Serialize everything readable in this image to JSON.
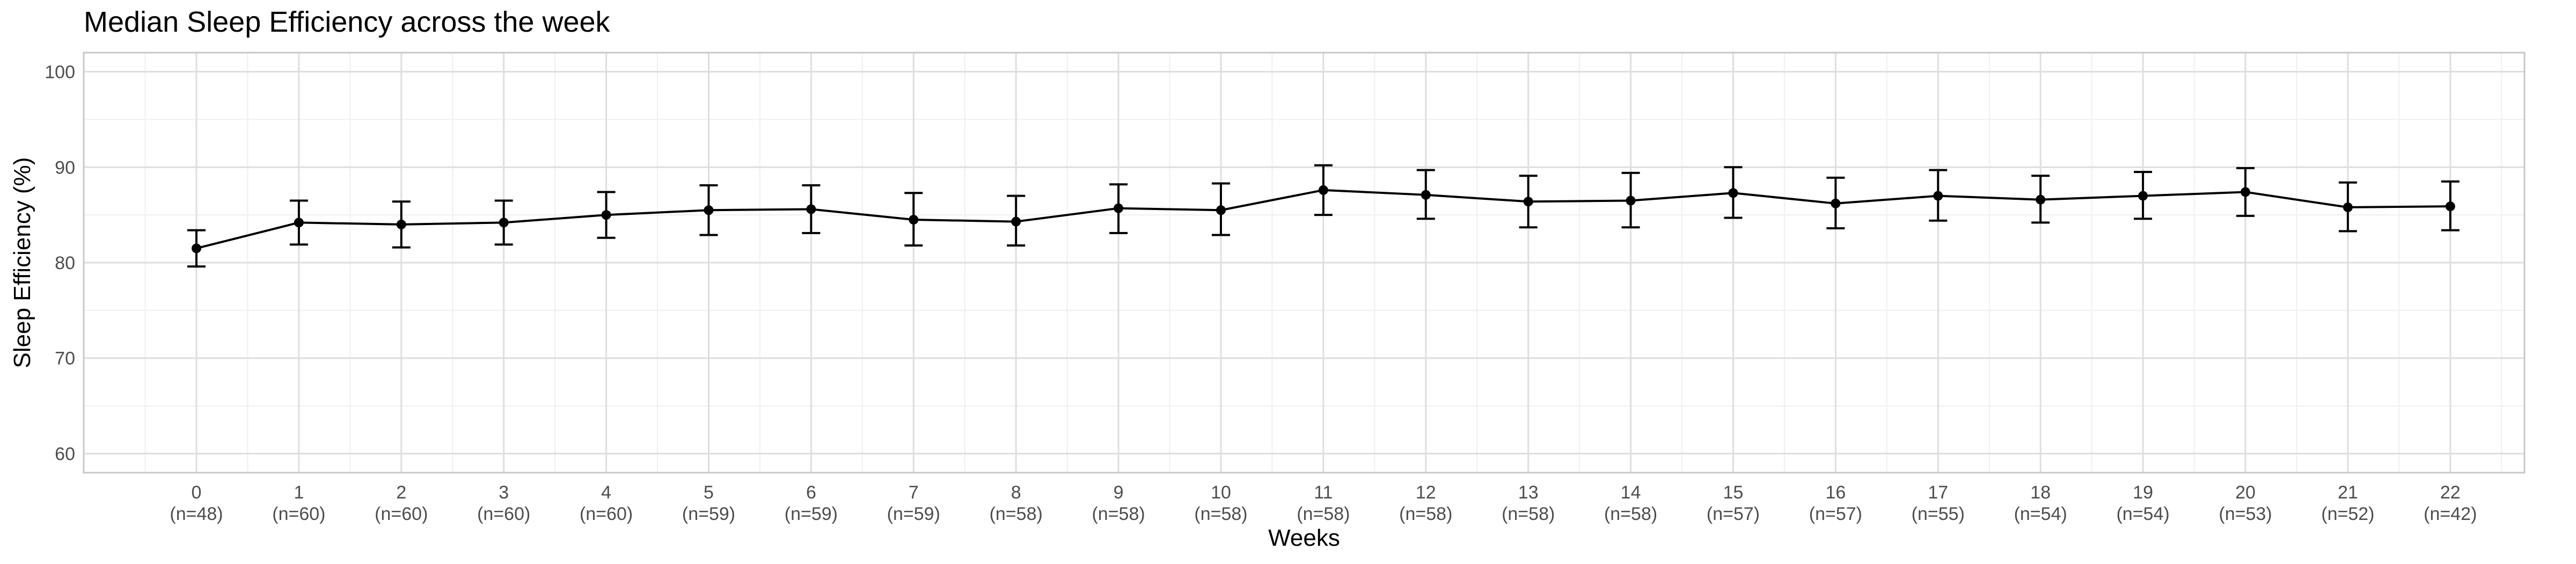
{
  "chart_data": {
    "type": "line",
    "title": "Median Sleep Efficiency across the week",
    "xlabel": "Weeks",
    "ylabel": "Sleep Efficiency (%)",
    "ylim": [
      58,
      102
    ],
    "yticks": [
      60,
      70,
      80,
      90,
      100
    ],
    "grid": true,
    "categories": [
      "0",
      "1",
      "2",
      "3",
      "4",
      "5",
      "6",
      "7",
      "8",
      "9",
      "10",
      "11",
      "12",
      "13",
      "14",
      "15",
      "16",
      "17",
      "18",
      "19",
      "20",
      "21",
      "22"
    ],
    "n_labels": [
      "(n=48)",
      "(n=60)",
      "(n=60)",
      "(n=60)",
      "(n=60)",
      "(n=59)",
      "(n=59)",
      "(n=59)",
      "(n=58)",
      "(n=58)",
      "(n=58)",
      "(n=58)",
      "(n=58)",
      "(n=58)",
      "(n=58)",
      "(n=57)",
      "(n=57)",
      "(n=55)",
      "(n=54)",
      "(n=54)",
      "(n=53)",
      "(n=52)",
      "(n=42)"
    ],
    "series": [
      {
        "values": [
          81.5,
          84.2,
          84.0,
          84.2,
          85.0,
          85.5,
          85.6,
          84.5,
          84.3,
          85.7,
          85.5,
          87.6,
          87.1,
          86.4,
          86.5,
          87.3,
          86.2,
          87.0,
          86.6,
          87.0,
          87.4,
          85.8,
          85.9
        ],
        "error_low": [
          79.6,
          81.9,
          81.6,
          81.9,
          82.6,
          82.9,
          83.1,
          81.8,
          81.8,
          83.1,
          82.9,
          85.0,
          84.6,
          83.7,
          83.7,
          84.7,
          83.6,
          84.4,
          84.2,
          84.6,
          84.9,
          83.3,
          83.4
        ],
        "error_high": [
          83.4,
          86.5,
          86.4,
          86.5,
          87.4,
          88.1,
          88.1,
          87.3,
          87.0,
          88.2,
          88.3,
          90.2,
          89.7,
          89.1,
          89.4,
          90.0,
          88.9,
          89.7,
          89.1,
          89.5,
          89.9,
          88.4,
          88.5
        ],
        "color": "#000000"
      }
    ],
    "colors": {
      "grid_major": "#dedede",
      "grid_minor": "#efefef",
      "panel_border": "#c8c8c8",
      "text": "#4d4d4d"
    }
  }
}
